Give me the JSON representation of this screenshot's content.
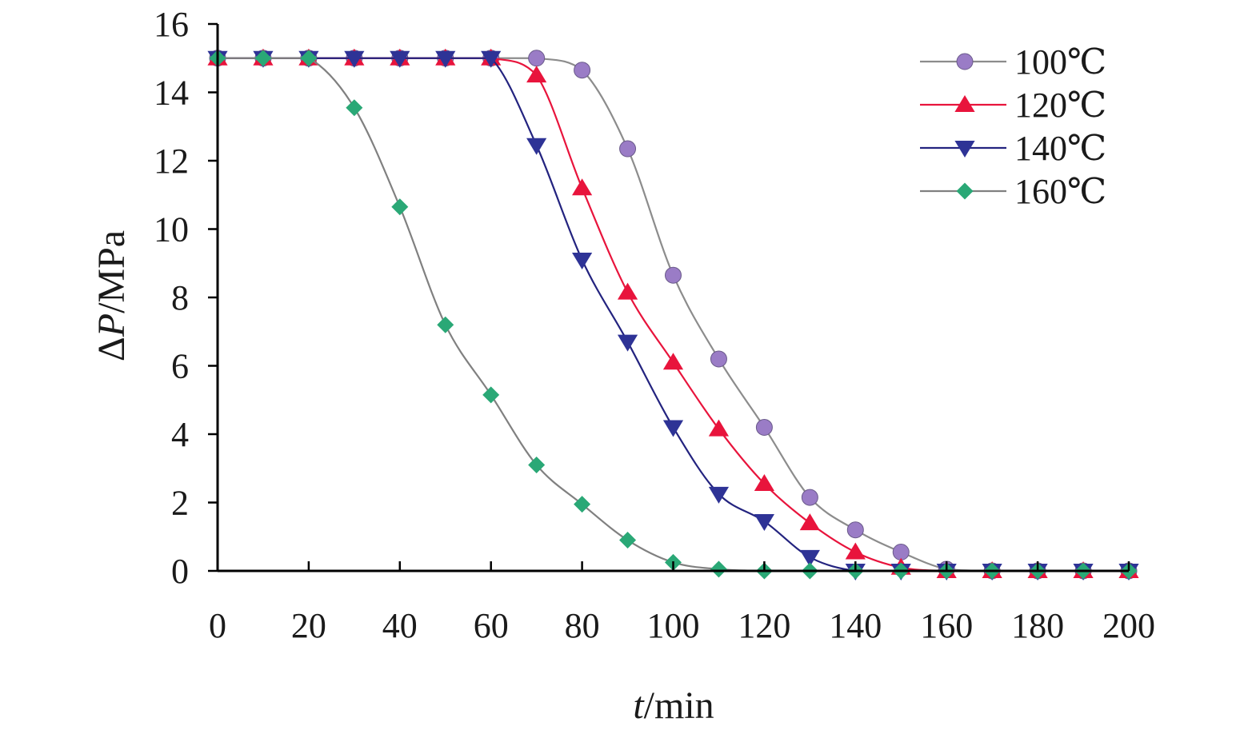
{
  "chart_data": {
    "type": "line",
    "title": "",
    "xlabel": "t/min",
    "ylabel": "ΔP/MPa",
    "xlabel_parts": {
      "italic": "t",
      "rest": "/min"
    },
    "ylabel_parts": {
      "prefix": "Δ",
      "italic": "P",
      "rest": "/MPa"
    },
    "xlim": [
      0,
      200
    ],
    "ylim": [
      0,
      16
    ],
    "xticks": [
      "0",
      "20",
      "40",
      "60",
      "80",
      "100",
      "120",
      "140",
      "160",
      "180",
      "200"
    ],
    "yticks": [
      "0",
      "2",
      "4",
      "6",
      "8",
      "10",
      "12",
      "14",
      "16"
    ],
    "grid": false,
    "legend_position": "top-right",
    "x": [
      0,
      10,
      20,
      30,
      40,
      50,
      60,
      70,
      80,
      90,
      100,
      110,
      120,
      130,
      140,
      150,
      160,
      170,
      180,
      190,
      200
    ],
    "series": [
      {
        "name": "100℃",
        "marker": "circle",
        "line_color": "#8c8c8c",
        "marker_color": "#9a7cc6",
        "values": [
          15.0,
          15.0,
          15.0,
          15.0,
          15.0,
          15.0,
          15.0,
          15.0,
          14.65,
          12.35,
          8.65,
          6.2,
          4.2,
          2.15,
          1.2,
          0.55,
          0.05,
          0.0,
          0.0,
          0.0,
          0.0
        ]
      },
      {
        "name": "120℃",
        "marker": "triangle-up",
        "line_color": "#e8143c",
        "marker_color": "#e8143c",
        "values": [
          15.0,
          15.0,
          15.0,
          15.0,
          15.0,
          15.0,
          15.0,
          14.5,
          11.2,
          8.15,
          6.1,
          4.15,
          2.55,
          1.4,
          0.55,
          0.1,
          0.0,
          0.0,
          0.0,
          0.0,
          0.0
        ]
      },
      {
        "name": "140℃",
        "marker": "triangle-down",
        "line_color": "#23237f",
        "marker_color": "#2e3396",
        "values": [
          15.0,
          15.0,
          15.0,
          15.0,
          15.0,
          15.0,
          15.0,
          12.45,
          9.1,
          6.7,
          4.2,
          2.25,
          1.45,
          0.4,
          0.0,
          0.0,
          0.0,
          0.0,
          0.0,
          0.0,
          0.0
        ]
      },
      {
        "name": "160℃",
        "marker": "diamond",
        "line_color": "#808080",
        "marker_color": "#2aa876",
        "values": [
          15.0,
          15.0,
          15.0,
          13.55,
          10.65,
          7.2,
          5.15,
          3.1,
          1.95,
          0.9,
          0.25,
          0.05,
          0.0,
          0.0,
          0.0,
          0.0,
          0.0,
          0.0,
          0.0,
          0.0,
          0.0
        ]
      }
    ]
  }
}
